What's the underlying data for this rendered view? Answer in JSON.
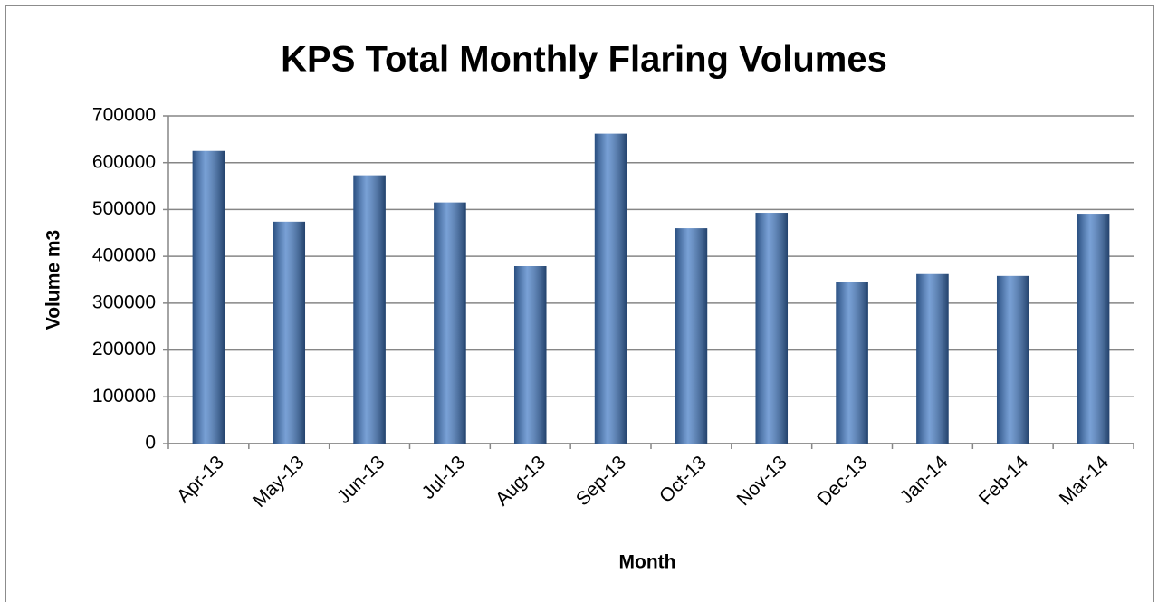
{
  "chart_data": {
    "type": "bar",
    "title": "KPS Total Monthly Flaring Volumes",
    "x_label": "Month",
    "y_label": "Volume m3",
    "categories": [
      "Apr-13",
      "May-13",
      "Jun-13",
      "Jul-13",
      "Aug-13",
      "Sep-13",
      "Oct-13",
      "Nov-13",
      "Dec-13",
      "Jan-14",
      "Feb-14",
      "Mar-14"
    ],
    "values": [
      625000,
      474000,
      573000,
      515000,
      379000,
      662000,
      460000,
      493000,
      346000,
      362000,
      358000,
      491000
    ],
    "color": "#3f78c4",
    "ylim": [
      0,
      700000
    ],
    "yticks": [
      0,
      100000,
      200000,
      300000,
      400000,
      500000,
      600000,
      700000
    ],
    "grid": true
  }
}
